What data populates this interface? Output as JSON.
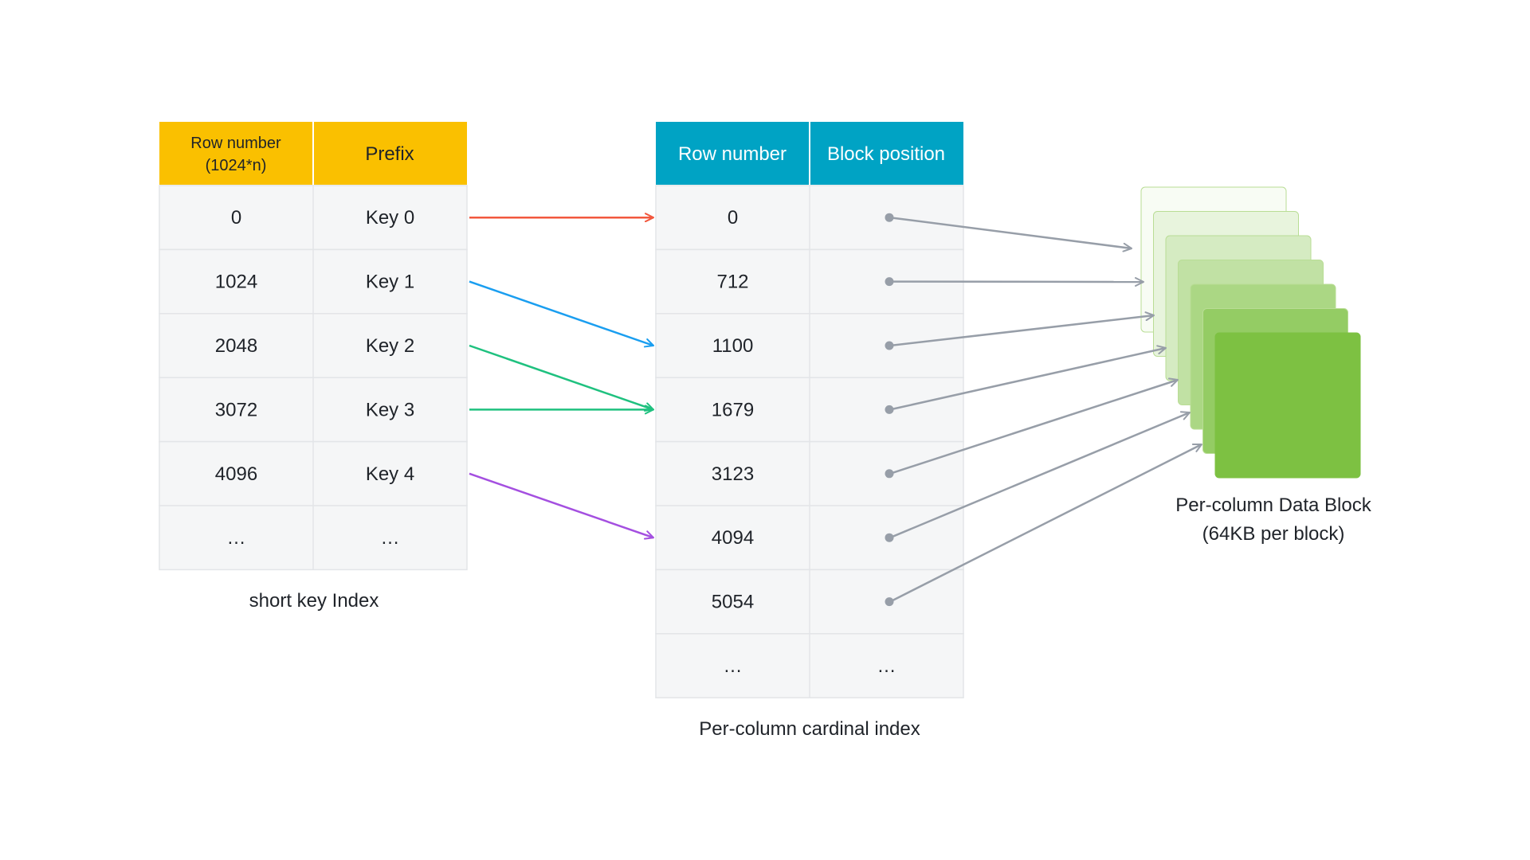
{
  "colors": {
    "short_key_header": "#fac000",
    "cardinal_header": "#00a3c4",
    "cell_bg": "#f5f6f7",
    "grid": "#e3e5e8",
    "red_arrow": "#f2583e",
    "blue_arrow": "#1a9ef0",
    "green_arrow": "#1fc17f",
    "purple_arrow": "#a44fe0",
    "gray_arrow": "#979ea8",
    "block_green": "#7dc142"
  },
  "short_key_index": {
    "header": {
      "row_number_line1": "Row number",
      "row_number_line2": "(1024*n)",
      "prefix": "Prefix"
    },
    "rows": [
      {
        "row": "0",
        "key": "Key 0"
      },
      {
        "row": "1024",
        "key": "Key 1"
      },
      {
        "row": "2048",
        "key": "Key 2"
      },
      {
        "row": "3072",
        "key": "Key 3"
      },
      {
        "row": "4096",
        "key": "Key 4"
      },
      {
        "row": "…",
        "key": "…"
      }
    ],
    "caption": "short key Index"
  },
  "cardinal_index": {
    "header": {
      "row_number": "Row number",
      "block_position": "Block position"
    },
    "rows": [
      {
        "row": "0",
        "pos": ""
      },
      {
        "row": "712",
        "pos": ""
      },
      {
        "row": "1100",
        "pos": ""
      },
      {
        "row": "1679",
        "pos": ""
      },
      {
        "row": "3123",
        "pos": ""
      },
      {
        "row": "4094",
        "pos": ""
      },
      {
        "row": "5054",
        "pos": ""
      },
      {
        "row": "…",
        "pos": "…"
      }
    ],
    "caption": "Per-column cardinal index"
  },
  "data_blocks": {
    "caption_line1": "Per-column Data Block",
    "caption_line2": "(64KB per block)",
    "count": 7
  },
  "key_mappings": [
    {
      "from_key_row": 0,
      "to_card_row": 0,
      "color": "red_arrow"
    },
    {
      "from_key_row": 1,
      "to_card_row": 2,
      "color": "blue_arrow"
    },
    {
      "from_key_row": 2,
      "to_card_row": 3,
      "color": "green_arrow"
    },
    {
      "from_key_row": 3,
      "to_card_row": 3,
      "color": "green_arrow"
    },
    {
      "from_key_row": 4,
      "to_card_row": 5,
      "color": "purple_arrow"
    }
  ],
  "block_mappings": [
    {
      "from_card_row": 0,
      "to_block": 0
    },
    {
      "from_card_row": 1,
      "to_block": 0
    },
    {
      "from_card_row": 2,
      "to_block": 1
    },
    {
      "from_card_row": 3,
      "to_block": 2
    },
    {
      "from_card_row": 4,
      "to_block": 3
    },
    {
      "from_card_row": 5,
      "to_block": 4
    },
    {
      "from_card_row": 6,
      "to_block": 5
    }
  ]
}
